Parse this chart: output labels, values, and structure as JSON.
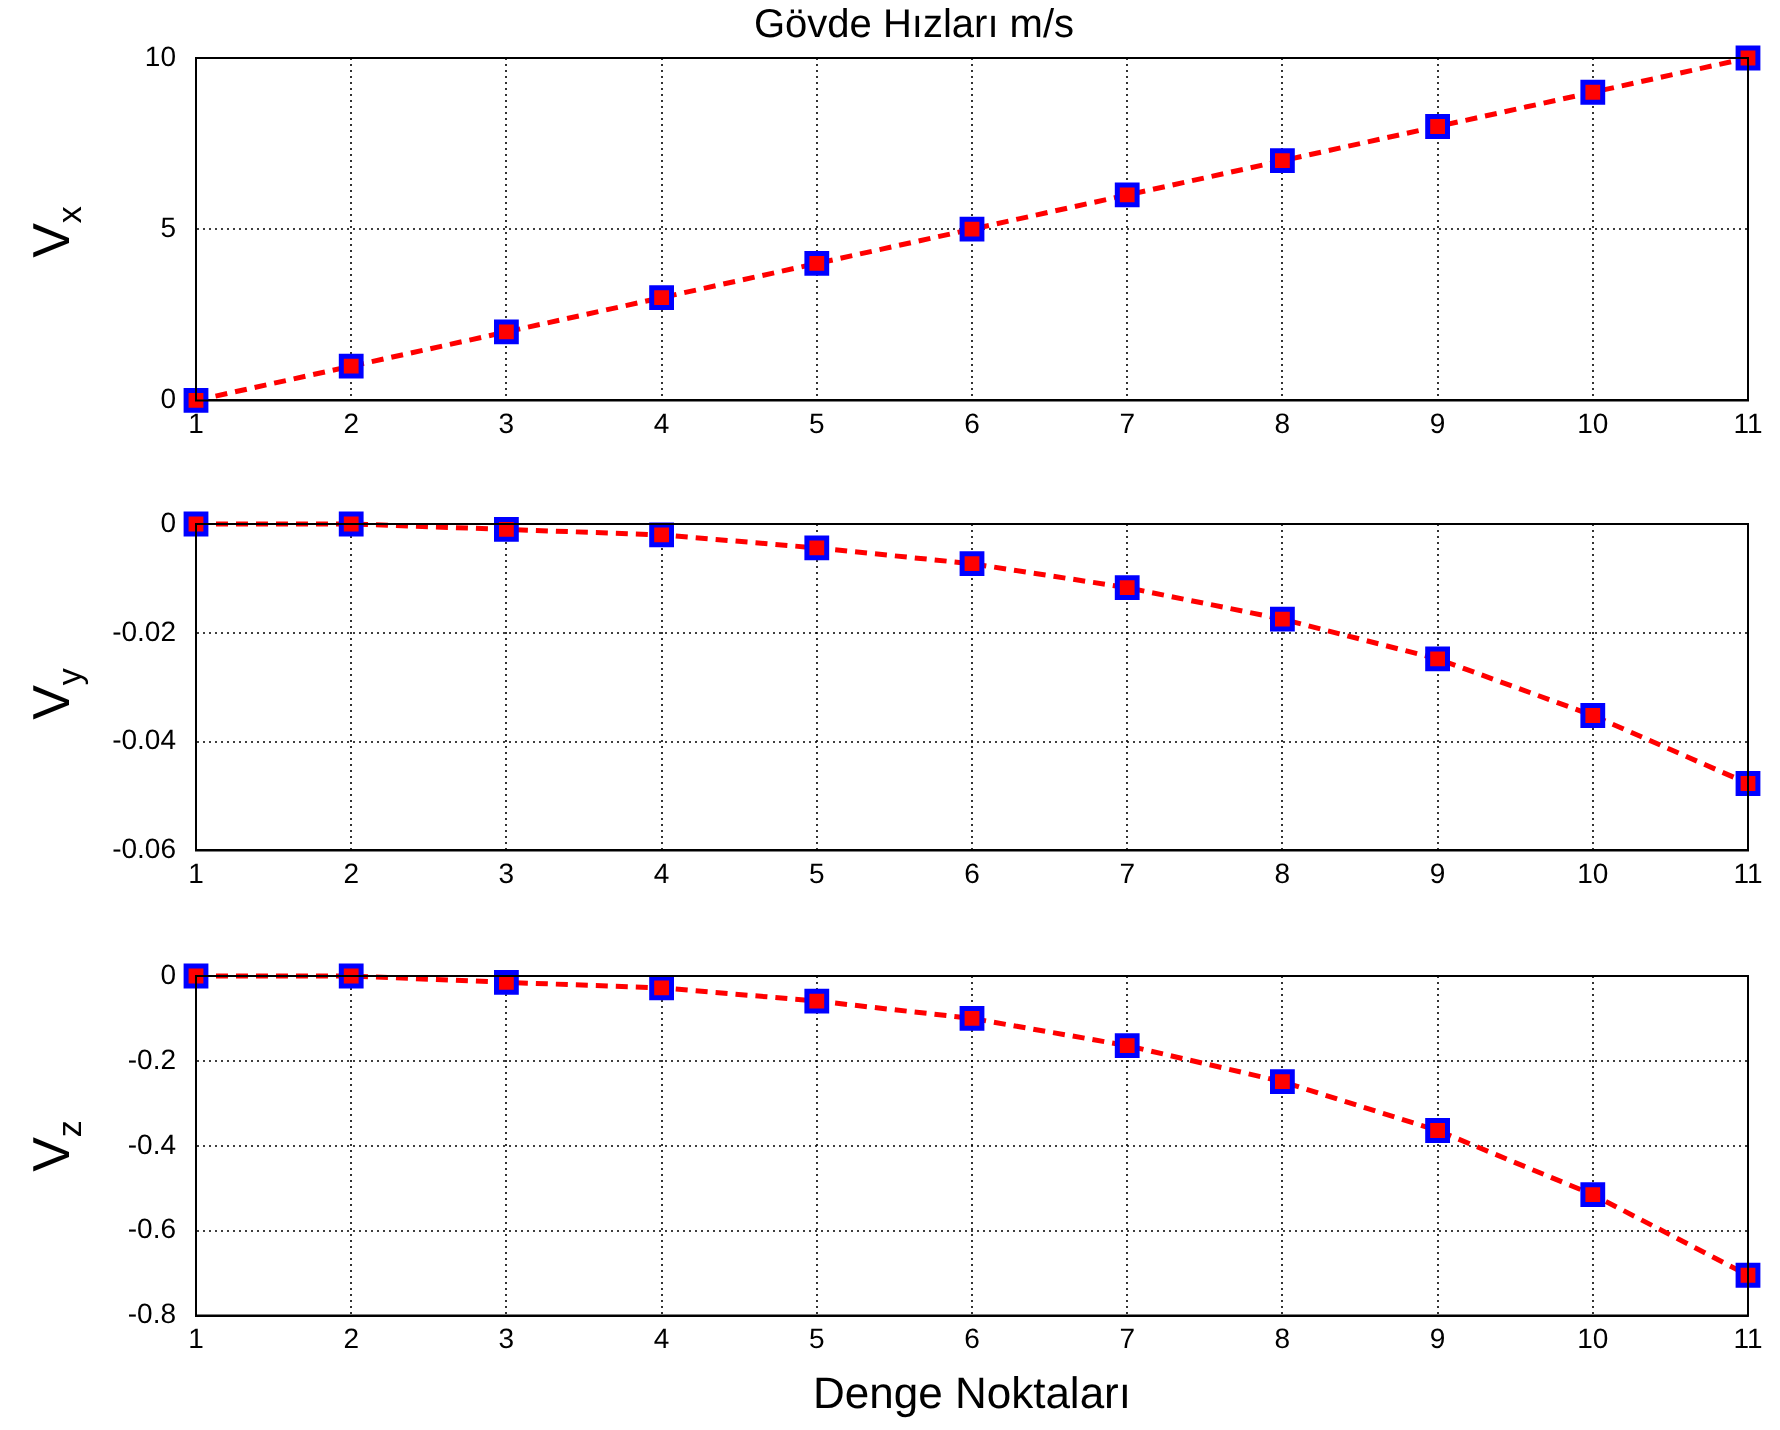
{
  "chart_data": [
    {
      "type": "line",
      "title": "Gövde Hızları m/s",
      "ylabel": "V$_{x}$",
      "x": [
        1,
        2,
        3,
        4,
        5,
        6,
        7,
        8,
        9,
        10,
        11
      ],
      "xlim": [
        1,
        11
      ],
      "xticks": [
        1,
        2,
        3,
        4,
        5,
        6,
        7,
        8,
        9,
        10,
        11
      ],
      "ylim": [
        0,
        10
      ],
      "yticks": [
        0,
        5,
        10
      ],
      "grid": true,
      "legend": false,
      "marker": "square",
      "line_style": "dashed",
      "series": [
        {
          "color": "#ff0000",
          "values": [
            0,
            1,
            2,
            3,
            4,
            5,
            6,
            7,
            8,
            9,
            10
          ]
        }
      ]
    },
    {
      "type": "line",
      "ylabel": "V$_{y}$",
      "x": [
        1,
        2,
        3,
        4,
        5,
        6,
        7,
        8,
        9,
        10,
        11
      ],
      "xlim": [
        1,
        11
      ],
      "xticks": [
        1,
        2,
        3,
        4,
        5,
        6,
        7,
        8,
        9,
        10,
        11
      ],
      "ylim": [
        -0.06,
        0
      ],
      "yticks": [
        -0.06,
        -0.04,
        -0.02,
        0
      ],
      "grid": true,
      "legend": false,
      "marker": "square",
      "line_style": "dashed",
      "series": [
        {
          "color": "#ff0000",
          "values": [
            0,
            0,
            -0.001,
            -0.002,
            -0.0044,
            -0.0073,
            -0.0117,
            -0.0175,
            -0.0248,
            -0.0352,
            -0.0477
          ]
        }
      ]
    },
    {
      "type": "line",
      "xlabel": "Denge Noktaları",
      "ylabel": "V$_{z}$",
      "x": [
        1,
        2,
        3,
        4,
        5,
        6,
        7,
        8,
        9,
        10,
        11
      ],
      "xlim": [
        1,
        11
      ],
      "xticks": [
        1,
        2,
        3,
        4,
        5,
        6,
        7,
        8,
        9,
        10,
        11
      ],
      "ylim": [
        -0.8,
        0
      ],
      "yticks": [
        -0.8,
        -0.6,
        -0.4,
        -0.2,
        0
      ],
      "grid": true,
      "legend": false,
      "marker": "square",
      "line_style": "dashed",
      "series": [
        {
          "color": "#ff0000",
          "values": [
            0,
            0,
            -0.015,
            -0.028,
            -0.059,
            -0.1,
            -0.164,
            -0.249,
            -0.364,
            -0.515,
            -0.705
          ]
        }
      ]
    }
  ]
}
